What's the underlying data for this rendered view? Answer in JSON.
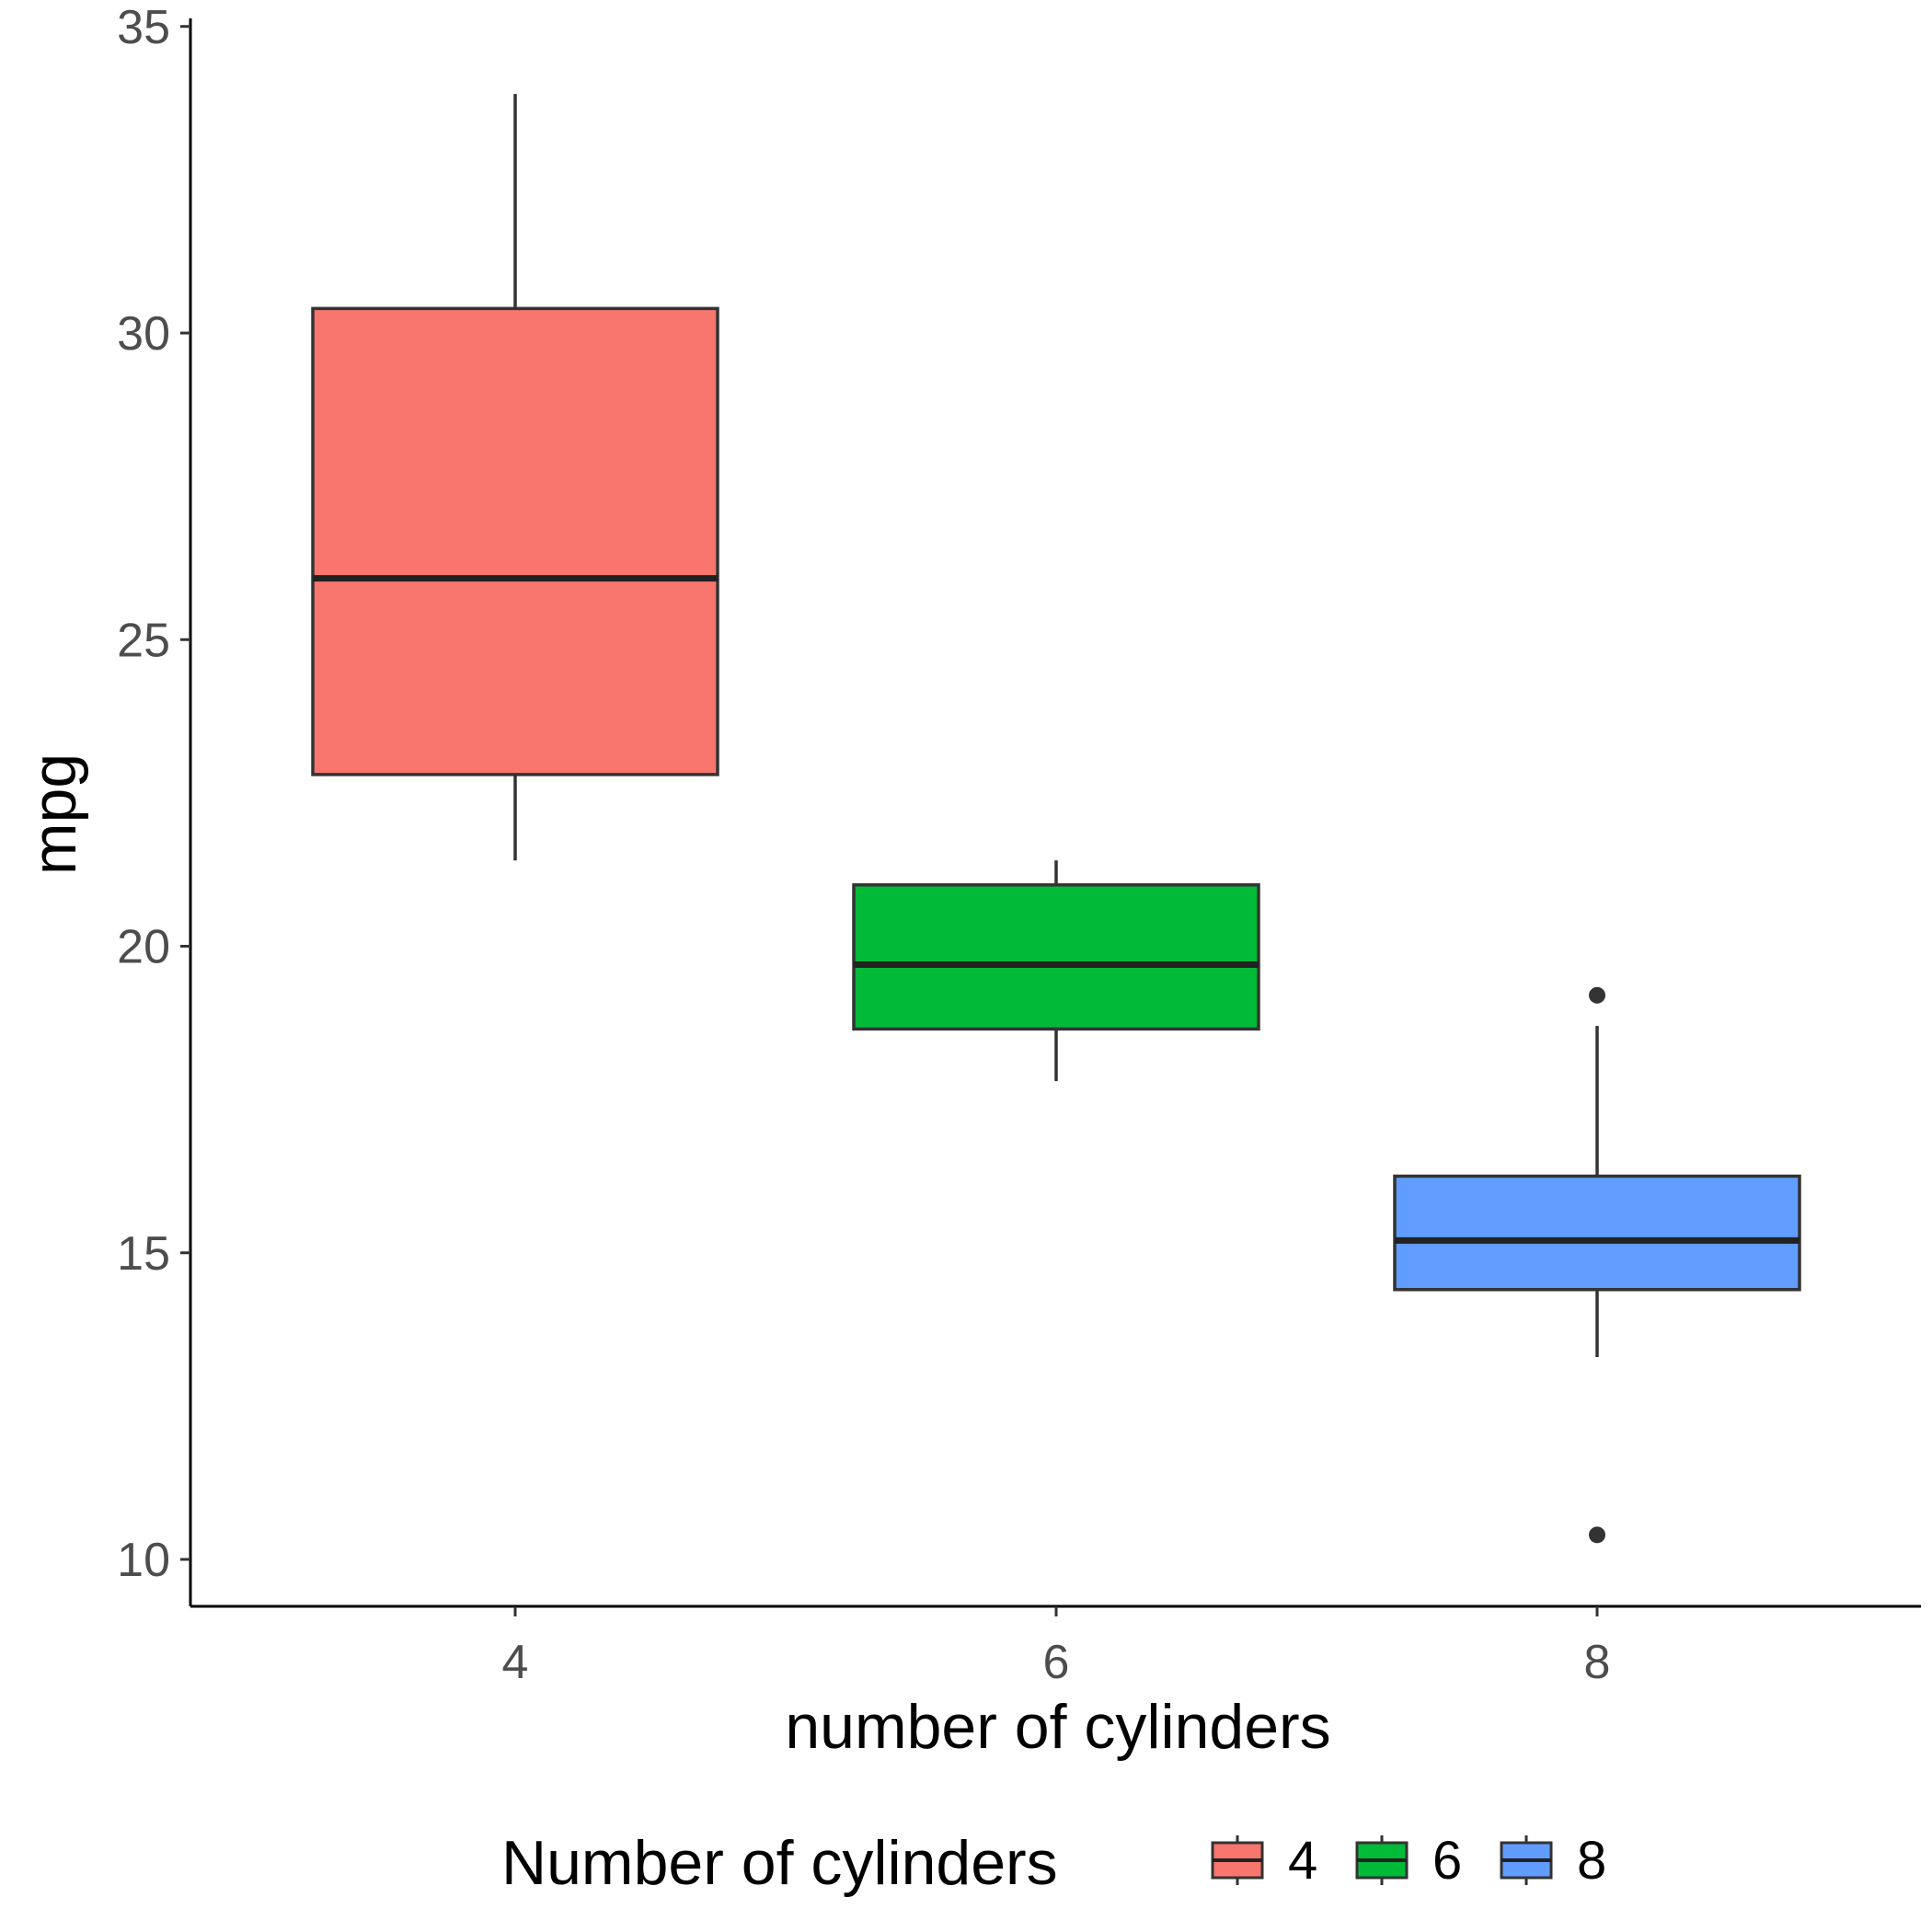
{
  "chart_data": {
    "type": "boxplot",
    "title": "",
    "xlabel": "number of cylinders",
    "ylabel": "mpg",
    "ylim": [
      9.35,
      35.1
    ],
    "y_ticks": [
      10,
      15,
      20,
      25,
      30,
      35
    ],
    "grid": false,
    "categories": [
      "4",
      "6",
      "8"
    ],
    "boxes": [
      {
        "category": "4",
        "lower_whisker": 21.4,
        "q1": 22.8,
        "median": 26.0,
        "q3": 30.4,
        "upper_whisker": 33.9,
        "outliers": [],
        "color": "#F8766D"
      },
      {
        "category": "6",
        "lower_whisker": 17.8,
        "q1": 18.65,
        "median": 19.7,
        "q3": 21.0,
        "upper_whisker": 21.4,
        "outliers": [],
        "color": "#00BA38"
      },
      {
        "category": "8",
        "lower_whisker": 13.3,
        "q1": 14.4,
        "median": 15.2,
        "q3": 16.25,
        "upper_whisker": 18.7,
        "outliers": [
          19.2,
          10.4
        ],
        "color": "#619CFF"
      }
    ],
    "legend": {
      "title": "Number of cylinders",
      "placement": "bottom",
      "entries": [
        {
          "label": "4",
          "color": "#F8766D"
        },
        {
          "label": "6",
          "color": "#00BA38"
        },
        {
          "label": "8",
          "color": "#619CFF"
        }
      ]
    }
  }
}
